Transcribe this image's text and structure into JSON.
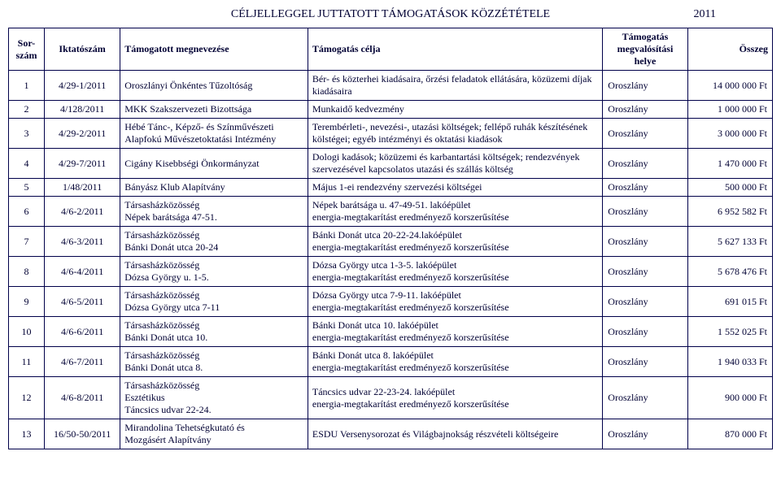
{
  "header": {
    "title": "CÉLJELLEGGEL JUTTATOTT TÁMOGATÁSOK KÖZZÉTÉTELE",
    "year": "2011"
  },
  "columns": {
    "sorszam": "Sor-szám",
    "iktato": "Iktatószám",
    "megnev": "Támogatott megnevezése",
    "celja": "Támogatás célja",
    "helye": "Támogatás megvalósítási helye",
    "osszeg": "Összeg"
  },
  "rows": [
    {
      "n": "1",
      "ikt": "4/29-1/2011",
      "meg": "Oroszlányi Önkéntes Tűzoltóság",
      "cel": "Bér- és közterhei kiadásaira, őrzési feladatok ellátására, közüzemi díjak kiadásaira",
      "hely": "Oroszlány",
      "oss": "14 000 000 Ft"
    },
    {
      "n": "2",
      "ikt": "4/128/2011",
      "meg": "MKK Szakszervezeti Bizottsága",
      "cel": "Munkaidő kedvezmény",
      "hely": "Oroszlány",
      "oss": "1 000 000 Ft"
    },
    {
      "n": "3",
      "ikt": "4/29-2/2011",
      "meg": "Hébé Tánc-, Képző- és Színművészeti Alapfokú Művészetoktatási Intézmény",
      "cel": "Terembérleti-, nevezési-, utazási költségek; fellépő ruhák készítésének kölstégei; egyéb intézményi és oktatási kiadások",
      "hely": "Oroszlány",
      "oss": "3 000 000 Ft"
    },
    {
      "n": "4",
      "ikt": "4/29-7/2011",
      "meg": "Cigány Kisebbségi Önkormányzat",
      "cel": "Dologi kadások; közüzemi és karbantartási költségek; rendezvények szervezésével kapcsolatos utazási és szállás költség",
      "hely": "Oroszlány",
      "oss": "1 470 000 Ft"
    },
    {
      "n": "5",
      "ikt": "1/48/2011",
      "meg": "Bányász Klub Alapítvány",
      "cel": "Május 1-ei rendezvény szervezési költségei",
      "hely": "Oroszlány",
      "oss": "500 000 Ft"
    },
    {
      "n": "6",
      "ikt": "4/6-2/2011",
      "meg": "Társasházközösség\nNépek barátsága 47-51.",
      "cel": "Népek barátsága u. 47-49-51. lakóépület\nenergia-megtakarítást eredményező korszerűsítése",
      "hely": "Oroszlány",
      "oss": "6 952 582 Ft"
    },
    {
      "n": "7",
      "ikt": "4/6-3/2011",
      "meg": "Társasházközösség\nBánki Donát utca 20-24",
      "cel": "Bánki Donát utca 20-22-24.lakóépület\nenergia-megtakarítást eredményező korszerűsítése",
      "hely": "Oroszlány",
      "oss": "5 627 133 Ft"
    },
    {
      "n": "8",
      "ikt": "4/6-4/2011",
      "meg": "Társasházközösség\nDózsa György u. 1-5.",
      "cel": "Dózsa György utca 1-3-5. lakóépület\nenergia-megtakarítást eredményező korszerűsítése",
      "hely": "Oroszlány",
      "oss": "5 678 476 Ft"
    },
    {
      "n": "9",
      "ikt": "4/6-5/2011",
      "meg": "Társasházközösség\nDózsa György utca 7-11",
      "cel": "Dózsa György utca 7-9-11. lakóépület\nenergia-megtakarítást eredményező korszerűsítése",
      "hely": "Oroszlány",
      "oss": "691 015 Ft"
    },
    {
      "n": "10",
      "ikt": "4/6-6/2011",
      "meg": "Társasházközösség\nBánki Donát utca 10.",
      "cel": "Bánki Donát utca 10. lakóépület\nenergia-megtakarítást eredményező korszerűsítése",
      "hely": "Oroszlány",
      "oss": "1 552 025 Ft"
    },
    {
      "n": "11",
      "ikt": "4/6-7/2011",
      "meg": "Társasházközösség\nBánki Donát utca 8.",
      "cel": "Bánki Donát utca 8. lakóépület\nenergia-megtakarítást eredményező korszerűsítése",
      "hely": "Oroszlány",
      "oss": "1 940 033 Ft"
    },
    {
      "n": "12",
      "ikt": "4/6-8/2011",
      "meg": "Társasházközösség\nEsztétikus\nTáncsics udvar 22-24.",
      "cel": "Táncsics udvar 22-23-24. lakóépület\nenergia-megtakarítást eredményező korszerűsítése",
      "hely": "Oroszlány",
      "oss": "900 000 Ft"
    },
    {
      "n": "13",
      "ikt": "16/50-50/2011",
      "meg": "Mirandolina Tehetségkutató és\nMozgásért Alapítvány",
      "cel": "ESDU Versenysorozat és Világbajnokság részvételi költségeire",
      "hely": "Oroszlány",
      "oss": "870 000 Ft"
    }
  ]
}
